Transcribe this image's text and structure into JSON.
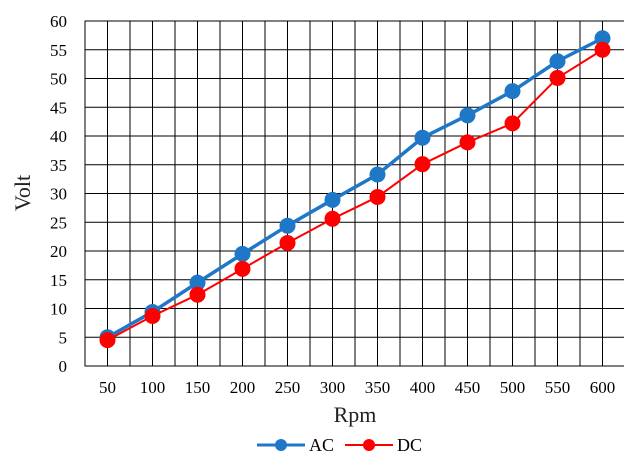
{
  "chart_data": {
    "type": "line",
    "title": "",
    "xlabel": "Rpm",
    "ylabel": "Volt",
    "categories": [
      50,
      100,
      150,
      200,
      250,
      300,
      350,
      400,
      450,
      500,
      550,
      600
    ],
    "ylim": [
      0,
      60
    ],
    "yticks": [
      0,
      5,
      10,
      15,
      20,
      25,
      30,
      35,
      40,
      45,
      50,
      55,
      60
    ],
    "grid": true,
    "legend_position": "bottom",
    "series": [
      {
        "name": "AC",
        "color": "#1F77C8",
        "marker": "circle",
        "values": [
          5.0,
          9.4,
          14.5,
          19.5,
          24.4,
          28.9,
          33.3,
          39.7,
          43.6,
          47.8,
          53.0,
          57.0
        ]
      },
      {
        "name": "DC",
        "color": "#FF0000",
        "marker": "circle",
        "values": [
          4.5,
          8.7,
          12.4,
          16.9,
          21.4,
          25.6,
          29.4,
          35.1,
          38.9,
          42.2,
          50.1,
          55.0
        ]
      }
    ]
  }
}
